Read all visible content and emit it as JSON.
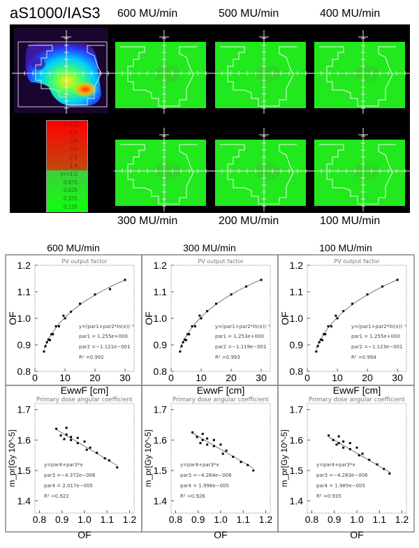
{
  "figure": {
    "main_title": "aS1000/IAS3",
    "top_rates": [
      "600 MU/min",
      "500 MU/min",
      "400 MU/min"
    ],
    "bottom_rates": [
      "300 MU/min",
      "200 MU/min",
      "100 MU/min"
    ],
    "legend": {
      "red": [
        "γ>5.0",
        "4.6",
        "3.8",
        "3.0",
        "2.2",
        "1.4"
      ],
      "green": [
        "γ<=1.0",
        "0.875",
        "0.625",
        "0.375",
        "0.125"
      ],
      "colors": {
        "red_top": "#ff0000",
        "red_bottom": "#c04a10",
        "green": "#22e022",
        "panel_green": "#22e81e",
        "background": "#000000"
      }
    }
  },
  "chart_data": [
    {
      "type": "scatter",
      "panel_label": "600 MU/min",
      "title": "PV output factor",
      "xlabel": "EwwF [cm]",
      "ylabel": "OF",
      "xlim": [
        0,
        33
      ],
      "ylim": [
        0.8,
        1.2
      ],
      "xticks": [
        "0",
        "10",
        "20",
        "30"
      ],
      "yticks": [
        "0.8",
        "0.9",
        "1.0",
        "1.1",
        "1.2"
      ],
      "x": [
        3,
        3.5,
        4,
        4.5,
        5,
        5.5,
        6,
        7,
        8,
        9.5,
        10,
        12,
        15,
        20,
        25,
        30
      ],
      "y": [
        0.875,
        0.895,
        0.91,
        0.92,
        0.918,
        0.94,
        0.94,
        0.97,
        0.97,
        1.01,
        1.0,
        1.025,
        1.055,
        1.09,
        1.11,
        1.145
      ],
      "fit": {
        "equation": "y=(par1+par2*ln(x))⁻¹",
        "par1": 1.255,
        "par2": -0.1121,
        "lines": [
          "par1  = 1.255e+000",
          "par2  =−1.121e−001",
          "R² =0.992"
        ]
      }
    },
    {
      "type": "scatter",
      "panel_label": "300 MU/min",
      "title": "PV output factor",
      "xlabel": "EwwF [cm]",
      "ylabel": "OF",
      "xlim": [
        0,
        33
      ],
      "ylim": [
        0.8,
        1.2
      ],
      "xticks": [
        "0",
        "10",
        "20",
        "30"
      ],
      "yticks": [
        "0.8",
        "0.9",
        "1.0",
        "1.1",
        "1.2"
      ],
      "x": [
        3,
        3.5,
        4,
        4.5,
        5,
        5.5,
        6,
        7,
        8,
        9.5,
        10,
        12,
        15,
        20,
        25,
        30
      ],
      "y": [
        0.875,
        0.895,
        0.91,
        0.92,
        0.918,
        0.94,
        0.94,
        0.97,
        0.97,
        1.01,
        1.0,
        1.027,
        1.055,
        1.09,
        1.12,
        1.145
      ],
      "fit": {
        "equation": "y=(par1+par2*ln(x))⁻¹",
        "par1": 1.253,
        "par2": -0.1119,
        "lines": [
          "par1  = 1.253e+000",
          "par2  =−1.119e−001",
          "R² =0.993"
        ]
      }
    },
    {
      "type": "scatter",
      "panel_label": "100 MU/min",
      "title": "PV output factor",
      "xlabel": "EwwF [cm]",
      "ylabel": "OF",
      "xlim": [
        0,
        33
      ],
      "ylim": [
        0.8,
        1.2
      ],
      "xticks": [
        "0",
        "10",
        "20",
        "30"
      ],
      "yticks": [
        "0.8",
        "0.9",
        "1.0",
        "1.1",
        "1.2"
      ],
      "x": [
        3,
        3.5,
        4,
        4.5,
        5,
        5.5,
        6,
        7,
        8,
        9.5,
        10,
        12,
        15,
        20,
        25,
        30
      ],
      "y": [
        0.875,
        0.895,
        0.91,
        0.92,
        0.918,
        0.94,
        0.94,
        0.97,
        0.97,
        1.01,
        1.0,
        1.027,
        1.055,
        1.09,
        1.12,
        1.145
      ],
      "fit": {
        "equation": "y=(par1+par2*ln(x))⁻¹",
        "par1": 1.255,
        "par2": -0.1123,
        "lines": [
          "par1  = 1.255e+000",
          "par2  =−1.123e−001",
          "R² =0.994"
        ]
      }
    },
    {
      "type": "scatter",
      "title": "Primary dose angular coefficient",
      "xlabel": "OF",
      "ylabel": "m_pr[Gy 10^-5]",
      "xlim": [
        0.78,
        1.22
      ],
      "ylim": [
        1.36,
        1.72
      ],
      "xticks": [
        "0.8",
        "0.9",
        "1.0",
        "1.1",
        "1.2"
      ],
      "yticks": [
        "1.4",
        "1.5",
        "1.6",
        "1.7"
      ],
      "x": [
        0.875,
        0.895,
        0.91,
        0.92,
        0.92,
        0.94,
        0.94,
        0.97,
        0.97,
        1.0,
        1.01,
        1.025,
        1.055,
        1.09,
        1.11,
        1.145
      ],
      "y": [
        1.637,
        1.615,
        1.603,
        1.64,
        1.618,
        1.61,
        1.6,
        1.607,
        1.59,
        1.595,
        1.568,
        1.575,
        1.558,
        1.54,
        1.533,
        1.51
      ],
      "fit": {
        "equation": "y=par4+par3*x",
        "par3": -4.372e-06,
        "par4": 2.017e-05,
        "lines": [
          "par3  =−4.372e−006",
          "par4  = 2.017e−005",
          "R² =0.922"
        ]
      }
    },
    {
      "type": "scatter",
      "title": "Primary dose angular coefficient",
      "xlabel": "OF",
      "ylabel": "m_pr[Gy 10^-5]",
      "xlim": [
        0.78,
        1.22
      ],
      "ylim": [
        1.36,
        1.72
      ],
      "xticks": [
        "0.8",
        "0.9",
        "1.0",
        "1.1",
        "1.2"
      ],
      "yticks": [
        "1.4",
        "1.5",
        "1.6",
        "1.7"
      ],
      "x": [
        0.875,
        0.895,
        0.91,
        0.92,
        0.92,
        0.94,
        0.94,
        0.97,
        0.97,
        1.0,
        1.01,
        1.025,
        1.055,
        1.09,
        1.12,
        1.145
      ],
      "y": [
        1.625,
        1.61,
        1.59,
        1.62,
        1.6,
        1.605,
        1.585,
        1.6,
        1.58,
        1.585,
        1.555,
        1.565,
        1.545,
        1.528,
        1.518,
        1.5
      ],
      "fit": {
        "equation": "y=par4+par3*x",
        "par3": -4.264e-06,
        "par4": 1.996e-05,
        "lines": [
          "par3  =−4.264e−006",
          "par4  = 1.996e−005",
          "R² =0.926"
        ]
      }
    },
    {
      "type": "scatter",
      "title": "Primary dose angular coefficient",
      "xlabel": "OF",
      "ylabel": "m_pr[Gy 10^-5]",
      "xlim": [
        0.78,
        1.22
      ],
      "ylim": [
        1.36,
        1.72
      ],
      "xticks": [
        "0.8",
        "0.9",
        "1.0",
        "1.1",
        "1.2"
      ],
      "yticks": [
        "1.4",
        "1.5",
        "1.6",
        "1.7"
      ],
      "x": [
        0.875,
        0.895,
        0.91,
        0.92,
        0.92,
        0.94,
        0.94,
        0.97,
        0.97,
        1.0,
        1.01,
        1.025,
        1.055,
        1.09,
        1.12,
        1.145
      ],
      "y": [
        1.615,
        1.6,
        1.585,
        1.612,
        1.59,
        1.595,
        1.575,
        1.59,
        1.57,
        1.575,
        1.55,
        1.555,
        1.535,
        1.52,
        1.505,
        1.49
      ],
      "fit": {
        "equation": "y=par4+par3*x",
        "par3": -4.283e-06,
        "par4": 1.985e-05,
        "lines": [
          "par3  =−4.283e−006",
          "par4  = 1.985e−005",
          "R² =0.935"
        ]
      }
    }
  ]
}
